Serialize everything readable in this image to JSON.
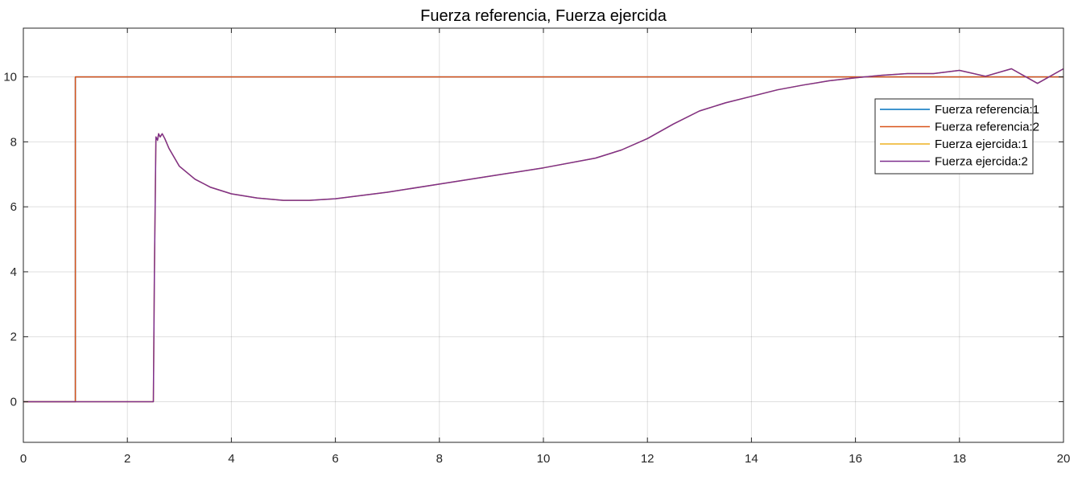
{
  "chart_data": {
    "type": "line",
    "title": "Fuerza referencia, Fuerza ejercida",
    "xlabel": "",
    "ylabel": "",
    "xlim": [
      0,
      20
    ],
    "ylim": [
      -1.25,
      11.5
    ],
    "xticks": [
      0,
      2,
      4,
      6,
      8,
      10,
      12,
      14,
      16,
      18,
      20
    ],
    "yticks": [
      0,
      2,
      4,
      6,
      8,
      10
    ],
    "grid": true,
    "legend_position": "top-right",
    "series": [
      {
        "name": "Fuerza referencia:1",
        "color": "#0072BD",
        "x": [
          0,
          1,
          1,
          20
        ],
        "y": [
          0,
          0,
          10,
          10
        ]
      },
      {
        "name": "Fuerza referencia:2",
        "color": "#D95319",
        "x": [
          0,
          1,
          1,
          20
        ],
        "y": [
          0,
          0,
          10,
          10
        ]
      },
      {
        "name": "Fuerza ejercida:1",
        "color": "#EDB120",
        "x": [
          0,
          2.5,
          2.52,
          2.55,
          2.58,
          2.6,
          2.63,
          2.67,
          2.72,
          2.8,
          3.0,
          3.3,
          3.6,
          4.0,
          4.5,
          5.0,
          5.5,
          6.0,
          7.0,
          8.0,
          9.0,
          10.0,
          11.0,
          11.5,
          12.0,
          12.5,
          13.0,
          13.5,
          14.0,
          14.5,
          15.0,
          15.5,
          16.0,
          16.5,
          17.0,
          17.5,
          18.0,
          18.5,
          19.0,
          19.5,
          20.0
        ],
        "y": [
          0,
          0,
          4.0,
          8.15,
          8.05,
          8.25,
          8.15,
          8.25,
          8.1,
          7.8,
          7.25,
          6.85,
          6.6,
          6.4,
          6.27,
          6.2,
          6.2,
          6.25,
          6.45,
          6.7,
          6.95,
          7.2,
          7.5,
          7.75,
          8.1,
          8.55,
          8.95,
          9.2,
          9.4,
          9.6,
          9.75,
          9.88,
          9.97,
          10.05,
          10.1,
          10.1,
          10.2,
          10.02,
          10.25,
          9.8,
          10.25
        ]
      },
      {
        "name": "Fuerza ejercida:2",
        "color": "#7E2F8E",
        "x": [
          0,
          2.5,
          2.52,
          2.55,
          2.58,
          2.6,
          2.63,
          2.67,
          2.72,
          2.8,
          3.0,
          3.3,
          3.6,
          4.0,
          4.5,
          5.0,
          5.5,
          6.0,
          7.0,
          8.0,
          9.0,
          10.0,
          11.0,
          11.5,
          12.0,
          12.5,
          13.0,
          13.5,
          14.0,
          14.5,
          15.0,
          15.5,
          16.0,
          16.5,
          17.0,
          17.5,
          18.0,
          18.5,
          19.0,
          19.5,
          20.0
        ],
        "y": [
          0,
          0,
          4.0,
          8.15,
          8.05,
          8.25,
          8.15,
          8.25,
          8.1,
          7.8,
          7.25,
          6.85,
          6.6,
          6.4,
          6.27,
          6.2,
          6.2,
          6.25,
          6.45,
          6.7,
          6.95,
          7.2,
          7.5,
          7.75,
          8.1,
          8.55,
          8.95,
          9.2,
          9.4,
          9.6,
          9.75,
          9.88,
          9.97,
          10.05,
          10.1,
          10.1,
          10.2,
          10.02,
          10.25,
          9.8,
          10.25
        ]
      }
    ]
  }
}
